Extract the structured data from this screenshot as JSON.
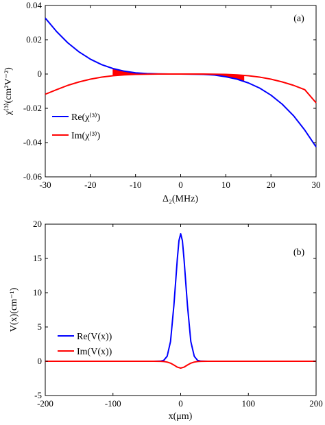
{
  "chart_data": [
    {
      "type": "line",
      "panel_label": "(a)",
      "xlabel": "Δ₂(MHz)",
      "ylabel": "χ⁽³⁾(cm²V⁻²)",
      "xlim": [
        -30,
        30
      ],
      "ylim": [
        -0.06,
        0.04
      ],
      "xticks": [
        -30,
        -20,
        -10,
        0,
        10,
        20,
        30
      ],
      "xtick_labels": [
        "-30",
        "-20",
        "-10",
        "0",
        "10",
        "20",
        "30"
      ],
      "yticks": [
        -0.06,
        -0.04,
        -0.02,
        0,
        0.02,
        0.04
      ],
      "ytick_labels": [
        "-0.06",
        "-0.04",
        "-0.02",
        "0",
        "0.02",
        "0.04"
      ],
      "legend_position": "left",
      "shaded_regions": [
        {
          "x_from": -15,
          "x_to": -9,
          "color": "#ff0000"
        },
        {
          "x_from": 6,
          "x_to": 14,
          "color": "#ff0000"
        }
      ],
      "series": [
        {
          "name": "Re(χ⁽³⁾)",
          "color": "#0000ff",
          "x": [
            -30,
            -27.5,
            -25,
            -22.5,
            -20,
            -17.5,
            -15,
            -12.5,
            -10,
            -7.5,
            -5,
            -2.5,
            0,
            2.5,
            5,
            7.5,
            10,
            12.5,
            15,
            17.5,
            20,
            22.5,
            25,
            27.5,
            30
          ],
          "y": [
            0.0327,
            0.0248,
            0.0182,
            0.0129,
            0.0087,
            0.0055,
            0.0032,
            0.0017,
            0.0007,
            0.0003,
            0.0001,
            0.0,
            0.0,
            -0.0001,
            -0.0002,
            -0.0006,
            -0.0016,
            -0.003,
            -0.0052,
            -0.0082,
            -0.0123,
            -0.0176,
            -0.0243,
            -0.0327,
            -0.0425
          ]
        },
        {
          "name": "Im(χ⁽³⁾)",
          "color": "#ff0000",
          "x": [
            -30,
            -27.5,
            -25,
            -22.5,
            -20,
            -17.5,
            -15,
            -12.5,
            -10,
            -7.5,
            -5,
            -2.5,
            0,
            2.5,
            5,
            7.5,
            10,
            12.5,
            15,
            17.5,
            20,
            22.5,
            25,
            27.5,
            30
          ],
          "y": [
            -0.0118,
            -0.0091,
            -0.0066,
            -0.0046,
            -0.003,
            -0.0018,
            -0.001,
            -0.0005,
            -0.0002,
            -0.0001,
            0.0,
            0.0,
            0.0,
            0.0,
            0.0,
            -0.0001,
            -0.0002,
            -0.0005,
            -0.001,
            -0.0018,
            -0.003,
            -0.0046,
            -0.0066,
            -0.0091,
            -0.0168
          ]
        }
      ]
    },
    {
      "type": "line",
      "panel_label": "(b)",
      "xlabel": "x(μm)",
      "ylabel": "V(x)(cm⁻¹)",
      "xlim": [
        -200,
        200
      ],
      "ylim": [
        -5,
        20
      ],
      "xticks": [
        -200,
        -100,
        0,
        100,
        200
      ],
      "xtick_labels": [
        "-200",
        "-100",
        "0",
        "100",
        "200"
      ],
      "yticks": [
        -5,
        0,
        5,
        10,
        15,
        20
      ],
      "ytick_labels": [
        "-5",
        "0",
        "5",
        "10",
        "15",
        "20"
      ],
      "legend_position": "left",
      "series": [
        {
          "name": "Re(V(x))",
          "color": "#0000ff",
          "x": [
            -200,
            -40,
            -30,
            -25,
            -20,
            -15,
            -10,
            -7.5,
            -5,
            -2.5,
            0,
            2.5,
            5,
            7.5,
            10,
            15,
            20,
            25,
            30,
            40,
            200
          ],
          "y": [
            0,
            0,
            0.02,
            0.13,
            0.73,
            2.88,
            8.14,
            11.5,
            14.9,
            17.6,
            18.6,
            17.6,
            14.9,
            11.5,
            8.14,
            2.88,
            0.73,
            0.13,
            0.02,
            0,
            0
          ]
        },
        {
          "name": "Im(V(x))",
          "color": "#ff0000",
          "x": [
            -200,
            -40,
            -30,
            -25,
            -20,
            -15,
            -10,
            -5,
            0,
            5,
            10,
            15,
            20,
            25,
            30,
            40,
            200
          ],
          "y": [
            0,
            0,
            -0.01,
            -0.04,
            -0.12,
            -0.28,
            -0.55,
            -0.86,
            -1.0,
            -0.86,
            -0.55,
            -0.28,
            -0.12,
            -0.04,
            -0.01,
            0,
            0
          ]
        }
      ]
    }
  ]
}
